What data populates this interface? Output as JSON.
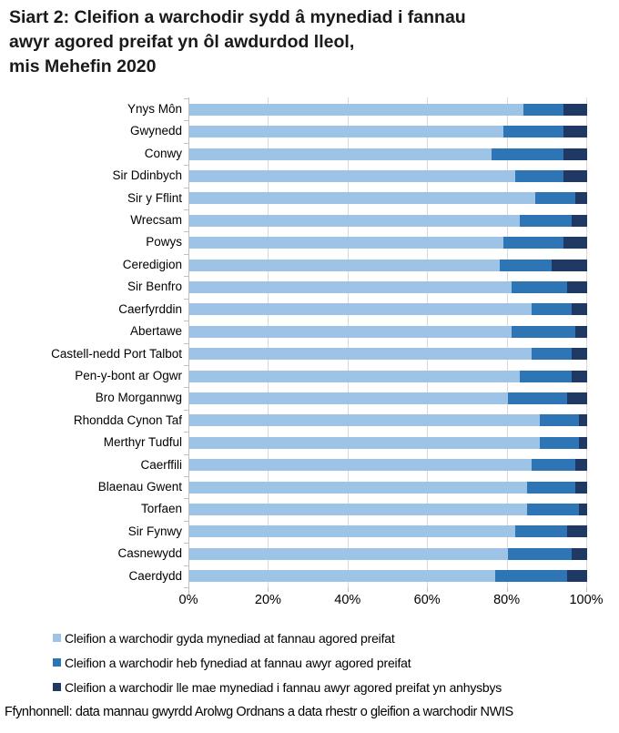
{
  "title": {
    "line1": "Siart 2: Cleifion a warchodir sydd â mynediad i fannau",
    "line2": "awyr agored preifat yn ôl awdurdod lleol,",
    "line3": "mis Mehefin 2020"
  },
  "source": "Ffynhonnell: data mannau gwyrdd Arolwg Ordnans a data rhestr o gleifion a warchodir NWIS",
  "colors": {
    "light_blue": "#9DC3E6",
    "medium_blue": "#2E75B6",
    "dark_navy": "#1F3864",
    "gridline": "#D9D9D9",
    "axis": "#BFBFBF",
    "text": "#000000"
  },
  "chart_data": {
    "type": "bar",
    "orientation": "horizontal",
    "stacked": true,
    "title": "Siart 2: Cleifion a warchodir sydd â mynediad i fannau awyr agored preifat yn ôl awdurdod lleol, mis Mehefin 2020",
    "categories": [
      "Ynys Môn",
      "Gwynedd",
      "Conwy",
      "Sir Ddinbych",
      "Sir y Fflint",
      "Wrecsam",
      "Powys",
      "Ceredigion",
      "Sir Benfro",
      "Caerfyrddin",
      "Abertawe",
      "Castell-nedd Port Talbot",
      "Pen-y-bont ar Ogwr",
      "Bro Morgannwg",
      "Rhondda Cynon Taf",
      "Merthyr Tudful",
      "Caerffili",
      "Blaenau Gwent",
      "Torfaen",
      "Sir Fynwy",
      "Casnewydd",
      "Caerdydd"
    ],
    "series": [
      {
        "id": "with-access",
        "name": "Cleifion a warchodir gyda mynediad at fannau agored preifat",
        "color": "#9DC3E6",
        "values": [
          84,
          79,
          76,
          82,
          87,
          83,
          79,
          78,
          81,
          86,
          81,
          86,
          83,
          80,
          88,
          88,
          86,
          85,
          85,
          82,
          80,
          77
        ]
      },
      {
        "id": "no-access",
        "name": "Cleifion a warchodir heb fynediad at fannau awyr agored preifat",
        "color": "#2E75B6",
        "values": [
          10,
          15,
          18,
          12,
          10,
          13,
          15,
          13,
          14,
          10,
          16,
          10,
          13,
          15,
          10,
          10,
          11,
          12,
          13,
          13,
          16,
          18
        ]
      },
      {
        "id": "unknown",
        "name": "Cleifion a warchodir lle mae mynediad i fannau awyr agored preifat yn anhysbys",
        "color": "#1F3864",
        "values": [
          6,
          6,
          6,
          6,
          3,
          4,
          6,
          9,
          5,
          4,
          3,
          4,
          4,
          5,
          2,
          2,
          3,
          3,
          2,
          5,
          4,
          5
        ]
      }
    ],
    "x_ticks": [
      "0%",
      "20%",
      "40%",
      "60%",
      "80%",
      "100%"
    ],
    "x_tick_values": [
      0,
      20,
      40,
      60,
      80,
      100
    ],
    "xlim": [
      0,
      100
    ],
    "grid": true,
    "legend_position": "bottom",
    "xlabel": "",
    "ylabel": ""
  }
}
